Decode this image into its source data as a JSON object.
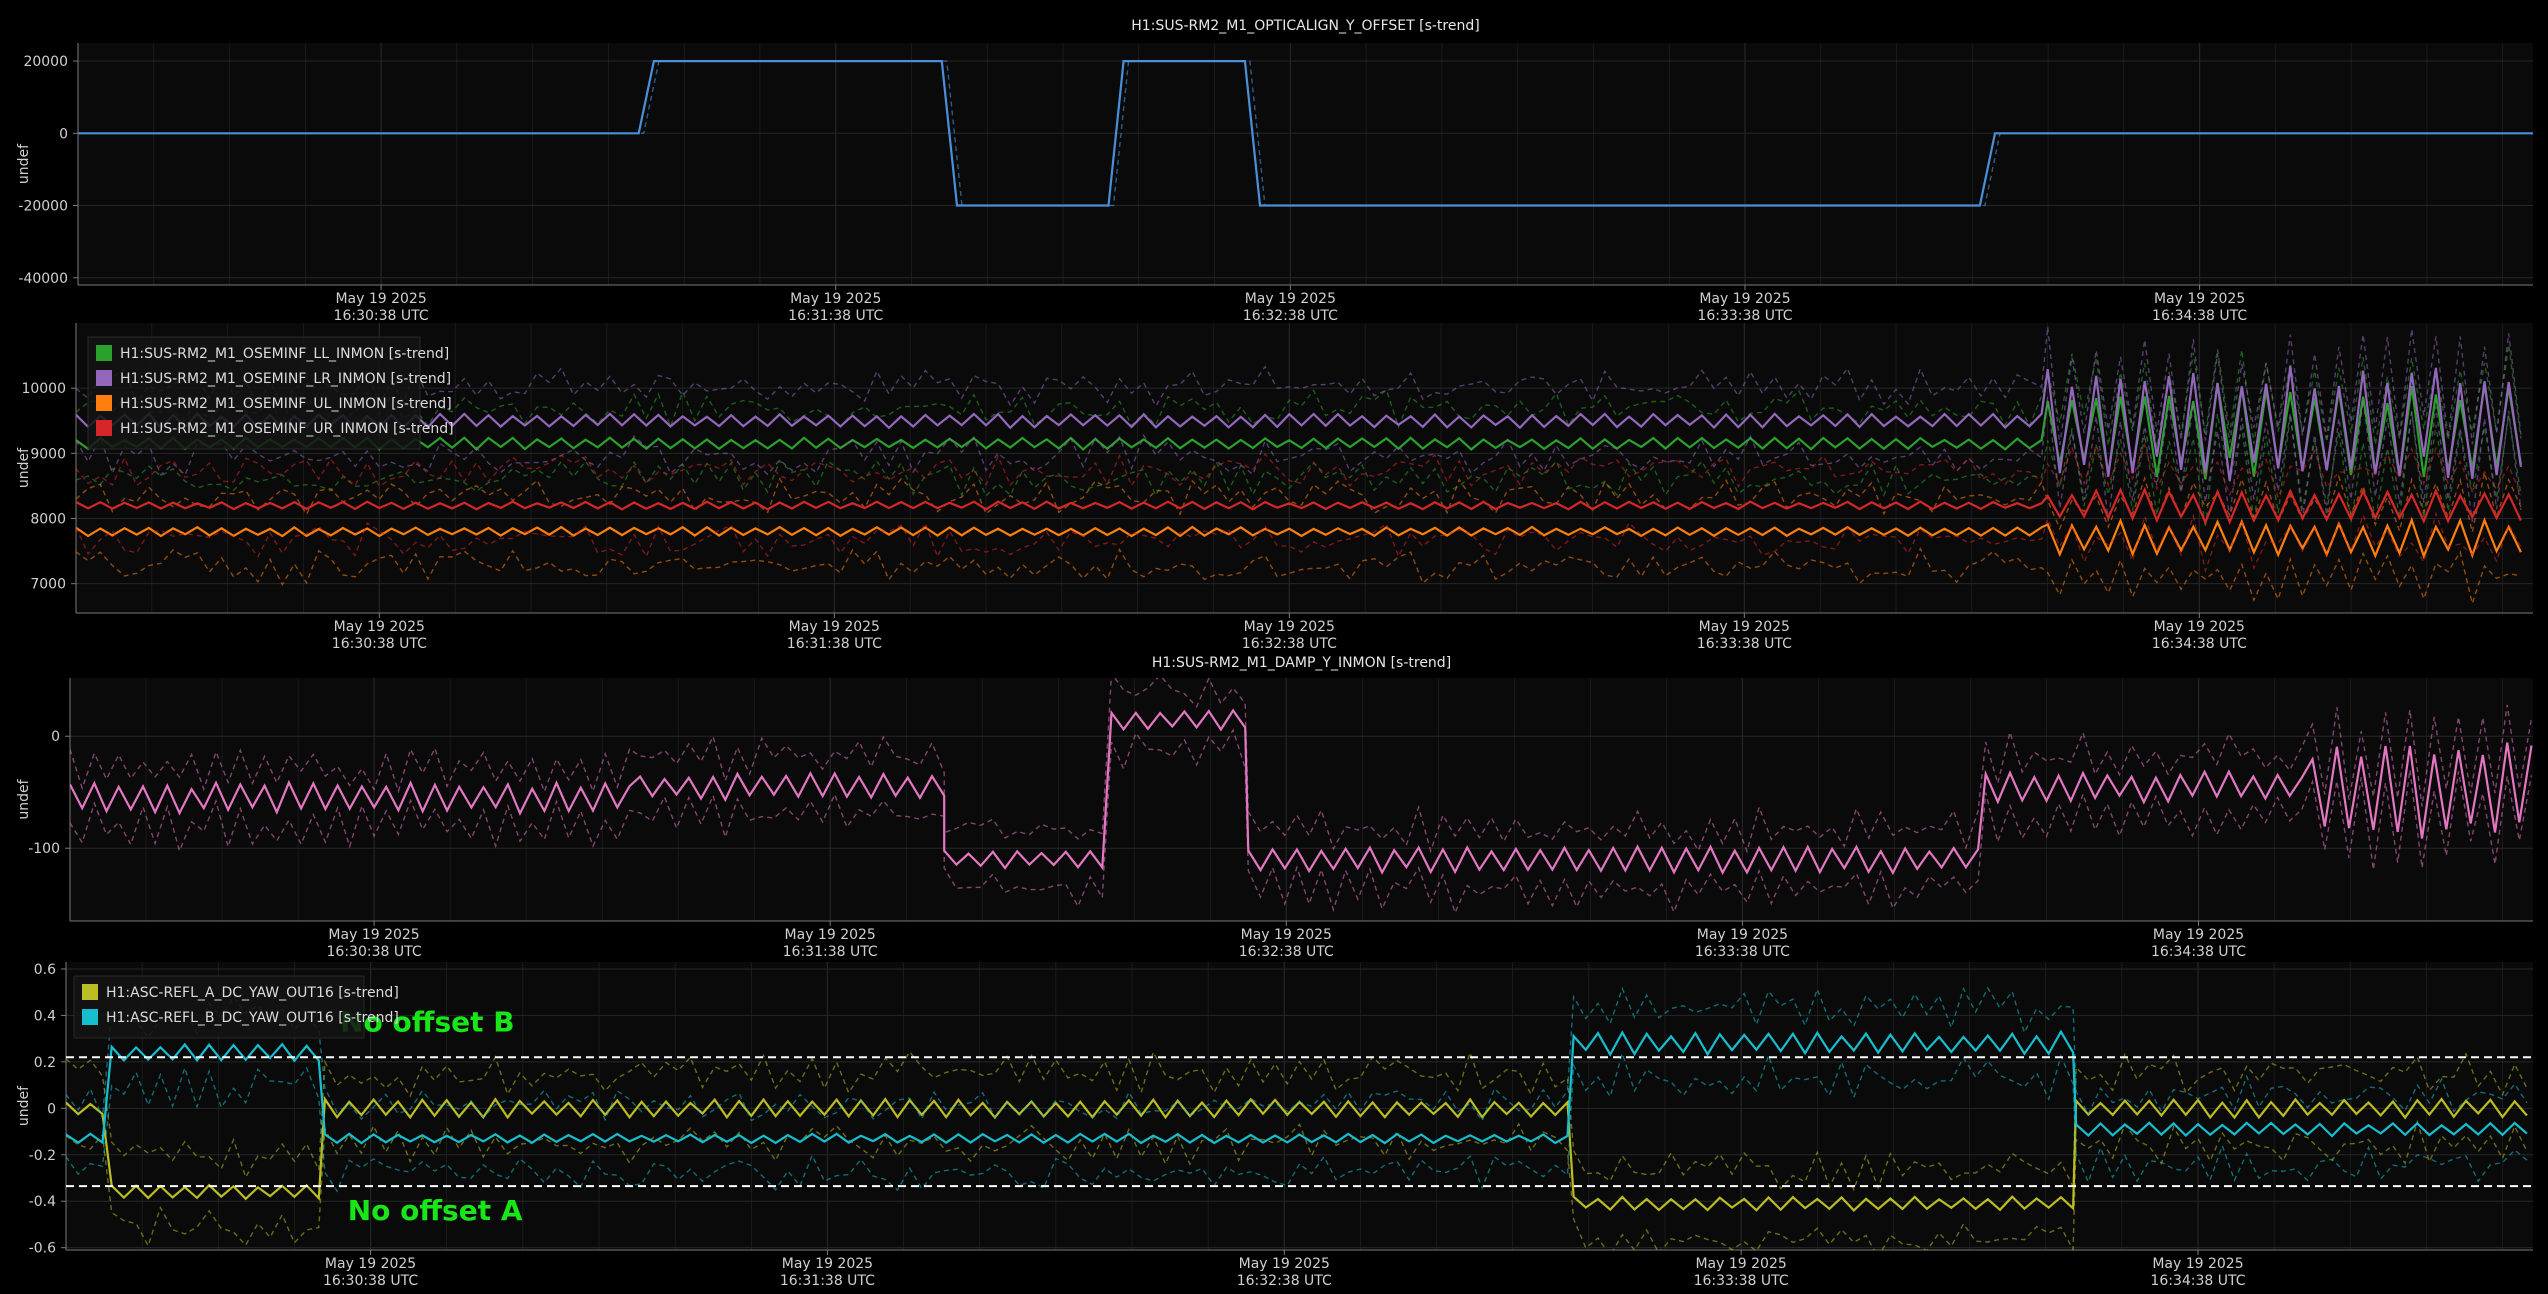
{
  "colors": {
    "background": "#000000",
    "plot_background": "#0a0a0a",
    "grid": "#262626",
    "axis": "#7a7a7a",
    "text": "#d0d0d0",
    "annotation": "#19e619",
    "reference_line": "#ffffff"
  },
  "x_axis": {
    "tick_dates": [
      "May 19 2025",
      "May 19 2025",
      "May 19 2025",
      "May 19 2025",
      "May 19 2025"
    ],
    "tick_times": [
      "16:30:38 UTC",
      "16:31:38 UTC",
      "16:32:38 UTC",
      "16:33:38 UTC",
      "16:34:38 UTC"
    ],
    "tick_seconds": [
      0,
      60,
      120,
      180,
      240
    ],
    "range_seconds": [
      -40,
      284
    ]
  },
  "chart_data": [
    {
      "type": "line",
      "title": "H1:SUS-RM2_M1_OPTICALIGN_Y_OFFSET [s-trend]",
      "ylabel": "undef",
      "yticks": [
        20000,
        0,
        -20000,
        -40000
      ],
      "ylim": [
        -42000,
        25000
      ],
      "grid": true,
      "legend": "none",
      "series": [
        {
          "color": "#4a90d9",
          "style": "step",
          "x": [
            -40,
            34,
            36,
            74,
            76,
            96,
            98,
            114,
            116,
            134,
            136,
            211,
            213,
            284
          ],
          "values": [
            0,
            0,
            20000,
            20000,
            -20000,
            -20000,
            20000,
            20000,
            -20000,
            -20000,
            -20000,
            -20000,
            0,
            0
          ]
        }
      ]
    },
    {
      "type": "line",
      "title": "",
      "ylabel": "undef",
      "yticks": [
        10000,
        9000,
        8000,
        7000
      ],
      "ylim": [
        6550,
        11000
      ],
      "grid": true,
      "legend": "top-left",
      "series": [
        {
          "name": "H1:SUS-RM2_M1_OSEMINF_LL_INMON [s-trend]",
          "color": "#2ca02c",
          "segments": [
            {
              "x_start": -40,
              "x_end": 220,
              "mean": 9150,
              "amp": 90
            },
            {
              "x_start": 220,
              "x_end": 284,
              "mean": 9350,
              "amp": 750
            }
          ]
        },
        {
          "name": "H1:SUS-RM2_M1_OSEMINF_LR_INMON [s-trend]",
          "color": "#9467bd",
          "segments": [
            {
              "x_start": -40,
              "x_end": 220,
              "mean": 9500,
              "amp": 110
            },
            {
              "x_start": 220,
              "x_end": 284,
              "mean": 9450,
              "amp": 900
            }
          ]
        },
        {
          "name": "H1:SUS-RM2_M1_OSEMINF_UL_INMON [s-trend]",
          "color": "#ff7f0e",
          "segments": [
            {
              "x_start": -40,
              "x_end": 220,
              "mean": 7800,
              "amp": 70
            },
            {
              "x_start": 220,
              "x_end": 284,
              "mean": 7700,
              "amp": 280
            }
          ]
        },
        {
          "name": "H1:SUS-RM2_M1_OSEMINF_UR_INMON [s-trend]",
          "color": "#d62728",
          "segments": [
            {
              "x_start": -40,
              "x_end": 220,
              "mean": 8200,
              "amp": 60
            },
            {
              "x_start": 220,
              "x_end": 284,
              "mean": 8200,
              "amp": 260
            }
          ]
        }
      ]
    },
    {
      "type": "line",
      "title": "H1:SUS-RM2_M1_DAMP_Y_INMON [s-trend]",
      "ylabel": "undef",
      "yticks": [
        0,
        -100
      ],
      "ylim": [
        -165,
        52
      ],
      "grid": true,
      "legend": "none",
      "series": [
        {
          "color": "#e377c2",
          "segments": [
            {
              "x_start": -40,
              "x_end": 35,
              "mean": -55,
              "amp": 14
            },
            {
              "x_start": 35,
              "x_end": 75,
              "mean": -45,
              "amp": 12
            },
            {
              "x_start": 75,
              "x_end": 97,
              "mean": -110,
              "amp": 8
            },
            {
              "x_start": 97,
              "x_end": 115,
              "mean": 15,
              "amp": 10
            },
            {
              "x_start": 115,
              "x_end": 212,
              "mean": -110,
              "amp": 12
            },
            {
              "x_start": 212,
              "x_end": 255,
              "mean": -45,
              "amp": 14
            },
            {
              "x_start": 255,
              "x_end": 284,
              "mean": -50,
              "amp": 45
            }
          ]
        }
      ]
    },
    {
      "type": "line",
      "title": "",
      "ylabel": "undef",
      "yticks": [
        0.6,
        0.4,
        0.2,
        0,
        -0.2,
        -0.4,
        -0.6
      ],
      "ylim": [
        -0.61,
        0.63
      ],
      "grid": true,
      "legend": "top-left",
      "series": [
        {
          "name": "H1:ASC-REFL_A_DC_YAW_OUT16 [s-trend]",
          "color": "#bcbd22",
          "segments": [
            {
              "x_start": -40,
              "x_end": -34,
              "mean": 0.0,
              "amp": 0.03
            },
            {
              "x_start": -34,
              "x_end": -6,
              "mean": -0.36,
              "amp": 0.03
            },
            {
              "x_start": -6,
              "x_end": 158,
              "mean": 0.0,
              "amp": 0.04
            },
            {
              "x_start": 158,
              "x_end": 224,
              "mean": -0.41,
              "amp": 0.03
            },
            {
              "x_start": 224,
              "x_end": 284,
              "mean": 0.0,
              "amp": 0.04
            }
          ]
        },
        {
          "name": "H1:ASC-REFL_B_DC_YAW_OUT16 [s-trend]",
          "color": "#17becf",
          "segments": [
            {
              "x_start": -40,
              "x_end": -34,
              "mean": -0.13,
              "amp": 0.02
            },
            {
              "x_start": -34,
              "x_end": -6,
              "mean": 0.24,
              "amp": 0.04
            },
            {
              "x_start": -6,
              "x_end": 158,
              "mean": -0.13,
              "amp": 0.02
            },
            {
              "x_start": 158,
              "x_end": 224,
              "mean": 0.28,
              "amp": 0.05
            },
            {
              "x_start": 224,
              "x_end": 284,
              "mean": -0.09,
              "amp": 0.03
            }
          ]
        }
      ],
      "reference_lines": [
        0.22,
        -0.335
      ],
      "annotations": [
        {
          "text": "No offset B",
          "x": -4,
          "y": 0.33
        },
        {
          "text": "No offset A",
          "x": -3,
          "y": -0.48
        }
      ]
    }
  ]
}
